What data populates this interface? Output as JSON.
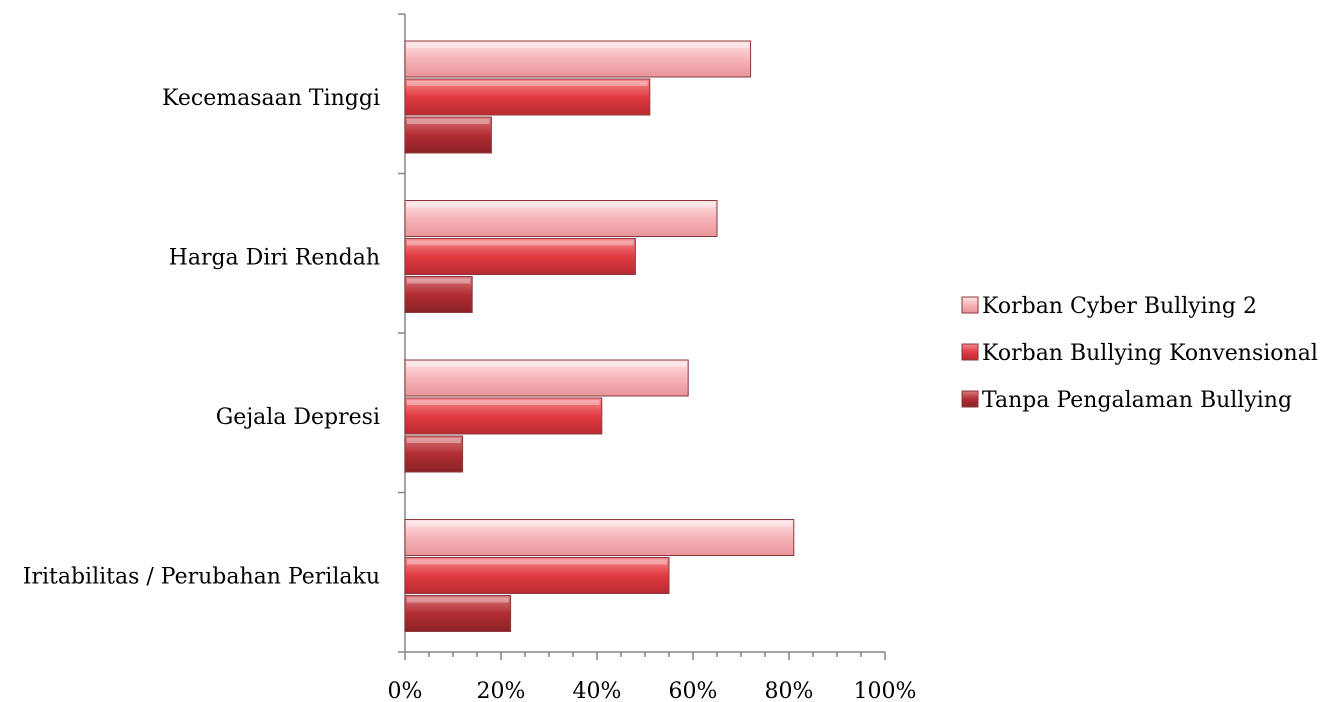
{
  "chart_data": {
    "type": "bar",
    "orientation": "horizontal",
    "title": "",
    "xlabel": "",
    "ylabel": "",
    "categories": [
      "Kecemasaan Tinggi",
      "Harga Diri Rendah",
      "Gejala Depresi",
      "Iritabilitas / Perubahan Perilaku"
    ],
    "series": [
      {
        "name": "Korban Cyber Bullying 2",
        "values": [
          72,
          65,
          59,
          81
        ],
        "color": "#f6b4b8"
      },
      {
        "name": "Korban Bullying Konvensional",
        "values": [
          51,
          48,
          41,
          55
        ],
        "color": "#e03c42"
      },
      {
        "name": "Tanpa Pengalaman Bullying",
        "values": [
          18,
          14,
          12,
          22
        ],
        "color": "#b22d32"
      }
    ],
    "xlim": [
      0,
      100
    ],
    "x_ticks": [
      "0%",
      "20%",
      "40%",
      "60%",
      "80%",
      "100%"
    ],
    "grid": false,
    "legend_position": "right"
  }
}
